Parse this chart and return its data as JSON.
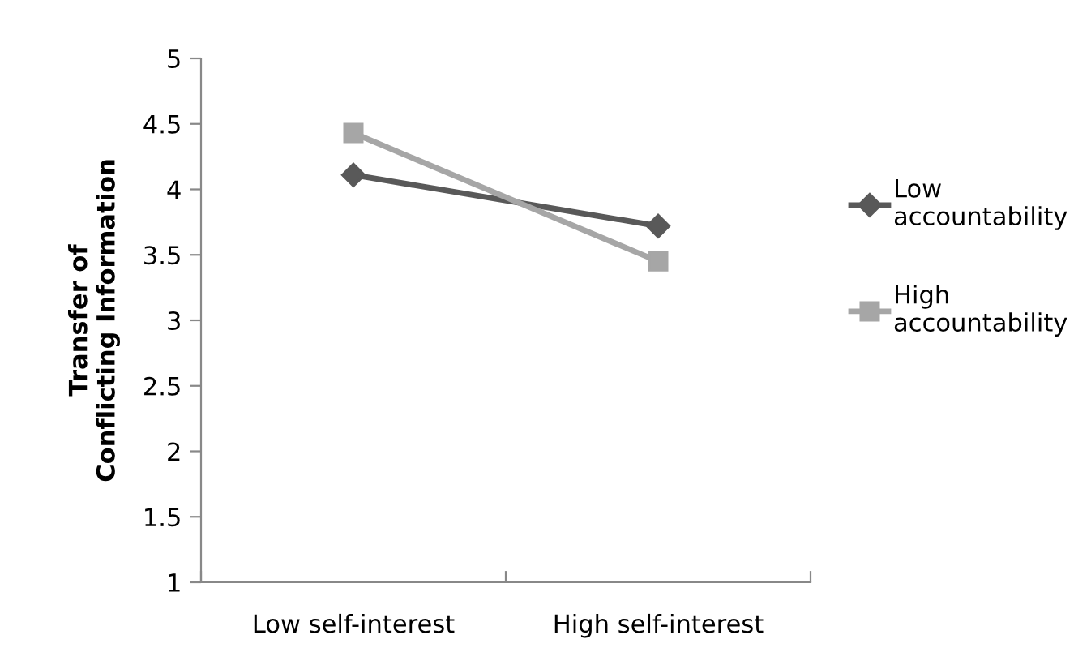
{
  "chart_data": {
    "type": "line",
    "ylabel": "Transfer of Conflicting Information",
    "categories": [
      "Low self-interest",
      "High self-interest"
    ],
    "series": [
      {
        "name": "Low accountability",
        "color": "#595959",
        "marker": "diamond",
        "values": [
          4.11,
          3.72
        ]
      },
      {
        "name": "High accountability",
        "color": "#a6a6a6",
        "marker": "square",
        "values": [
          4.43,
          3.45
        ]
      }
    ],
    "ylim": [
      1,
      5
    ],
    "yticks": [
      1,
      1.5,
      2,
      2.5,
      3,
      3.5,
      4,
      4.5,
      5
    ],
    "grid": false,
    "legend": "right"
  }
}
